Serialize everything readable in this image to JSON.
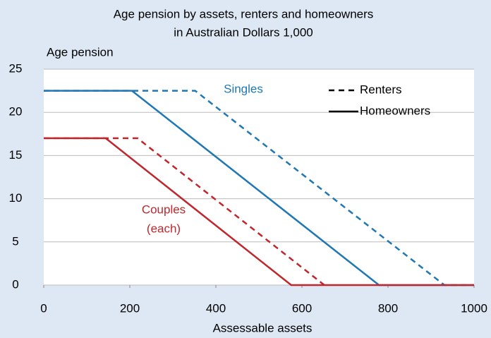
{
  "chart_data": {
    "type": "line",
    "title": [
      "Age pension by assets, renters and homeowners",
      "in Australian Dollars 1,000"
    ],
    "y_label": "Age pension",
    "x_label": "Assessable assets",
    "xlim": [
      0,
      1000
    ],
    "xticks": [
      0,
      200,
      400,
      600,
      800,
      1000
    ],
    "ylim": [
      0,
      25
    ],
    "yticks": [
      0,
      5,
      10,
      15,
      20,
      25
    ],
    "grid": true,
    "legend": [
      {
        "name": "Renters",
        "dashed": true
      },
      {
        "name": "Homeowners",
        "dashed": false
      }
    ],
    "groups": [
      {
        "label": [
          "Singles"
        ],
        "color": "#1f77b4",
        "series": [
          {
            "dashed": true,
            "x": [
              0,
              352,
              931,
              1000
            ],
            "values": [
              22.5,
              22.5,
              0,
              0
            ]
          },
          {
            "dashed": false,
            "x": [
              0,
              205,
              779,
              1000
            ],
            "values": [
              22.5,
              22.5,
              0,
              0
            ]
          }
        ]
      },
      {
        "label": [
          "Couples",
          "(each)"
        ],
        "color": "#c0272d",
        "series": [
          {
            "dashed": true,
            "x": [
              0,
              218,
              652
            ],
            "values": [
              17,
              17,
              0
            ]
          },
          {
            "dashed": false,
            "x": [
              0,
              144,
              575,
              1000
            ],
            "values": [
              17,
              17,
              0,
              0
            ]
          }
        ]
      }
    ]
  }
}
